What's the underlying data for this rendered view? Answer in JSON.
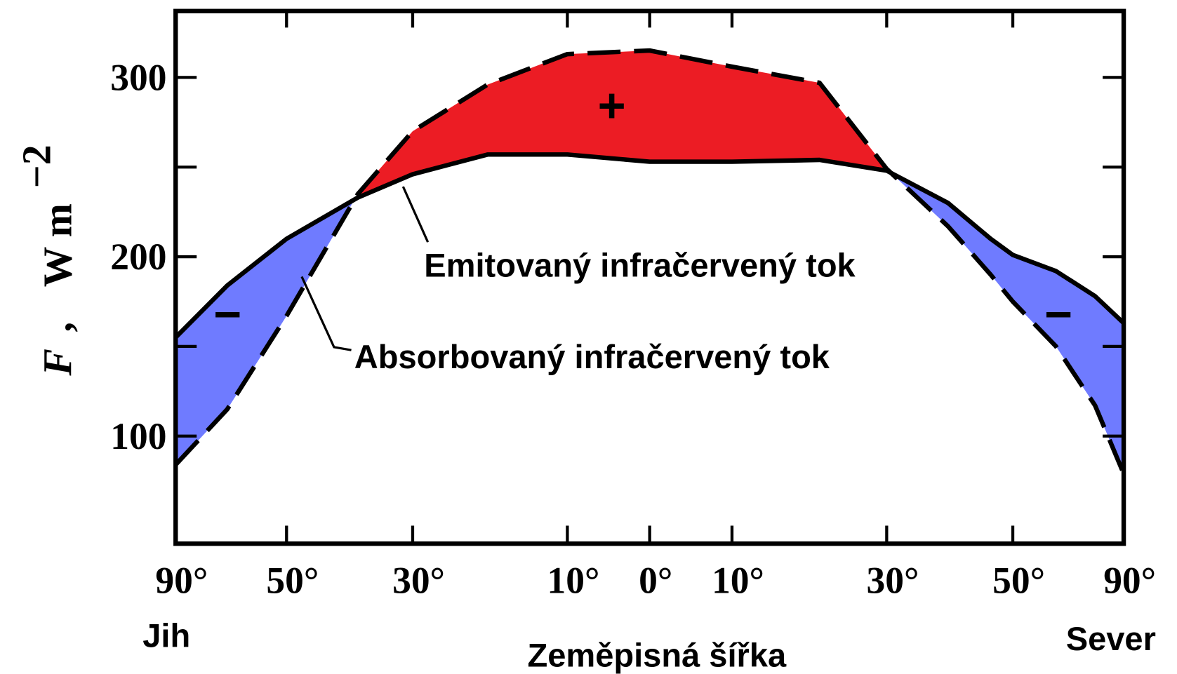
{
  "chart_data": {
    "type": "line",
    "xlabel": "Zeměpisná šířka",
    "ylabel": {
      "symbol": "F",
      "sep": ",",
      "unit": "W m",
      "exponent": "−2"
    },
    "south_label": "Jih",
    "north_label": "Sever",
    "xscale": "sine",
    "xlim": [
      -90,
      90
    ],
    "xticks": [
      {
        "value": -90,
        "label": "90°"
      },
      {
        "value": -50,
        "label": "50°"
      },
      {
        "value": -30,
        "label": "30°"
      },
      {
        "value": -10,
        "label": "10°"
      },
      {
        "value": 0,
        "label": "0°"
      },
      {
        "value": 10,
        "label": "10°"
      },
      {
        "value": 30,
        "label": "30°"
      },
      {
        "value": 50,
        "label": "50°"
      },
      {
        "value": 90,
        "label": "90°"
      }
    ],
    "ylim": [
      40,
      337
    ],
    "yticks": [
      100,
      200,
      300
    ],
    "yminorticks": [
      150,
      250
    ],
    "x": [
      -90,
      -63,
      -50,
      -38,
      -30,
      -20,
      -10,
      0,
      10,
      21,
      30,
      39,
      46,
      50,
      59,
      70,
      90
    ],
    "series": [
      {
        "name": "Emitovaný infračervený tok",
        "style": "solid",
        "color": "#000000",
        "values": [
          155,
          184,
          210,
          233,
          246,
          257,
          257,
          253,
          253,
          254,
          248,
          230,
          210,
          201,
          192,
          178,
          163
        ]
      },
      {
        "name": "Absorbovaný infračervený tok",
        "style": "dashed",
        "color": "#000000",
        "values": [
          84,
          115,
          167,
          235,
          270,
          296,
          313,
          315,
          306,
          297,
          249,
          217,
          190,
          175,
          150,
          117,
          79
        ]
      }
    ],
    "surplus_color": "#ec1c24",
    "deficit_color": "#6f7bff",
    "annotations": [
      "+",
      "−",
      "−"
    ]
  }
}
